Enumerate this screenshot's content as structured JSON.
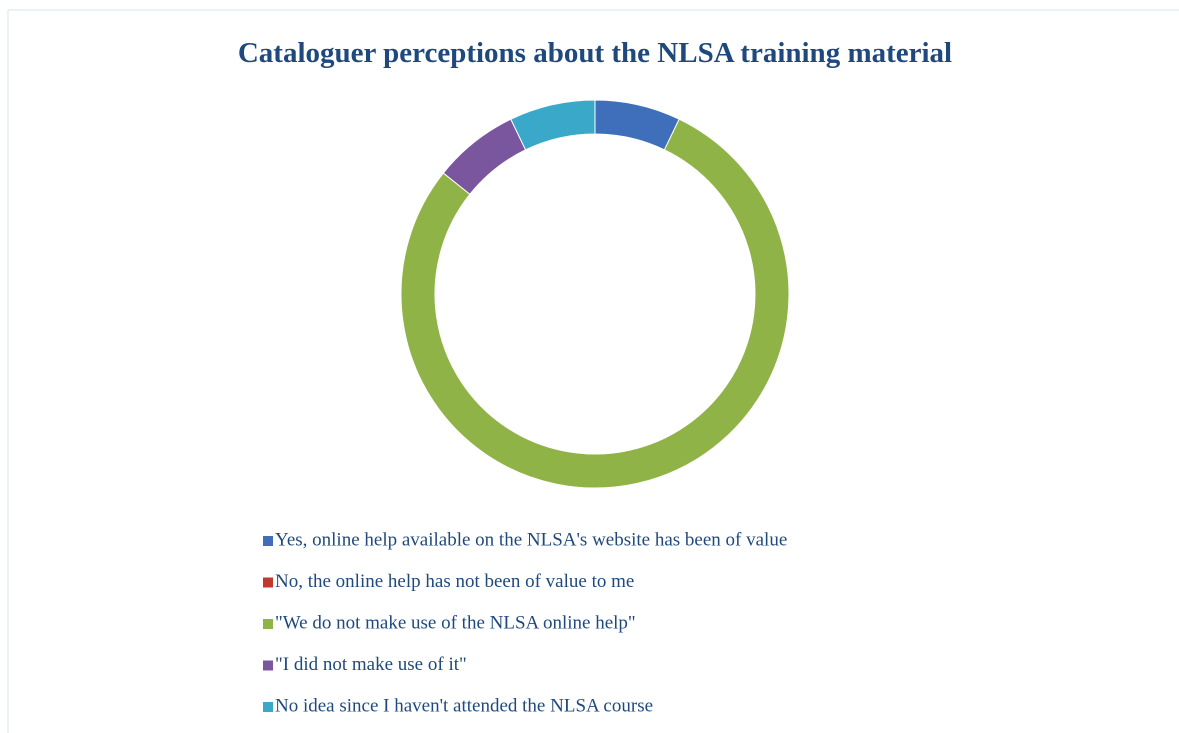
{
  "chart_data": {
    "type": "donut",
    "title": "Cataloguer perceptions about the NLSA training material",
    "categories": [
      "Yes, online help available on the NLSA's website has been of value",
      "No, the online help has not been of value to me",
      "\"We do not make use of the NLSA online help\"",
      "\"I did not make use of it\"",
      "No idea since I haven't attended the NLSA course"
    ],
    "values": [
      1,
      0,
      11,
      1,
      1
    ],
    "colors": [
      "#3f6fba",
      "#c0392f",
      "#8fb346",
      "#7a569f",
      "#3aa9c9"
    ],
    "legend": "bottom"
  }
}
